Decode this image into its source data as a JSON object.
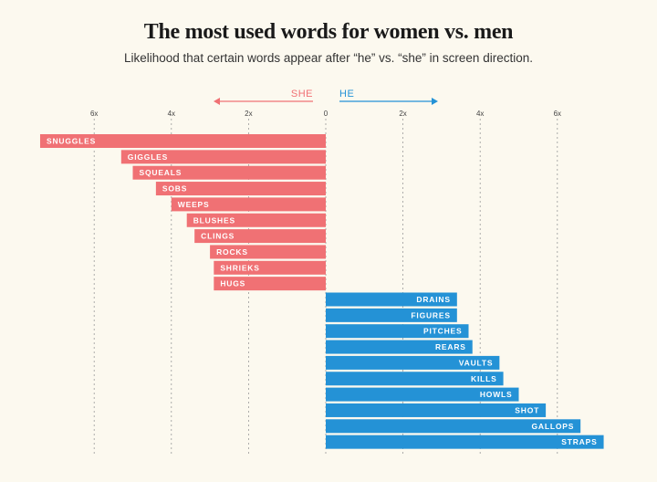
{
  "title": "The most used words for women vs. men",
  "subtitle": "Likelihood that certain words appear after “he” vs. “she” in screen direction.",
  "colors": {
    "she": "#f07174",
    "he": "#2492d6",
    "grid": "#9a9a9a",
    "background": "#fcf9ef"
  },
  "chart_data": {
    "type": "bar",
    "orientation": "horizontal",
    "direction_labels": {
      "left": "SHE",
      "right": "HE"
    },
    "tick_labels": [
      "6x",
      "4x",
      "2x",
      "0",
      "2x",
      "4x",
      "6x"
    ],
    "tick_values": [
      -6,
      -4,
      -2,
      0,
      2,
      4,
      6
    ],
    "xlim": [
      -7.4,
      7.4
    ],
    "grid": true,
    "series": [
      {
        "name": "SHE",
        "categories": [
          "SNUGGLES",
          "GIGGLES",
          "SQUEALS",
          "SOBS",
          "WEEPS",
          "BLUSHES",
          "CLINGS",
          "ROCKS",
          "SHRIEKS",
          "HUGS"
        ],
        "values": [
          -7.4,
          -5.3,
          -5.0,
          -4.4,
          -4.0,
          -3.6,
          -3.4,
          -3.0,
          -2.9,
          -2.9
        ]
      },
      {
        "name": "HE",
        "categories": [
          "DRAINS",
          "FIGURES",
          "PITCHES",
          "REARS",
          "VAULTS",
          "KILLS",
          "HOWLS",
          "SHOT",
          "GALLOPS",
          "STRAPS"
        ],
        "values": [
          3.4,
          3.4,
          3.7,
          3.8,
          4.5,
          4.6,
          5.0,
          5.7,
          6.6,
          7.2
        ]
      }
    ]
  }
}
